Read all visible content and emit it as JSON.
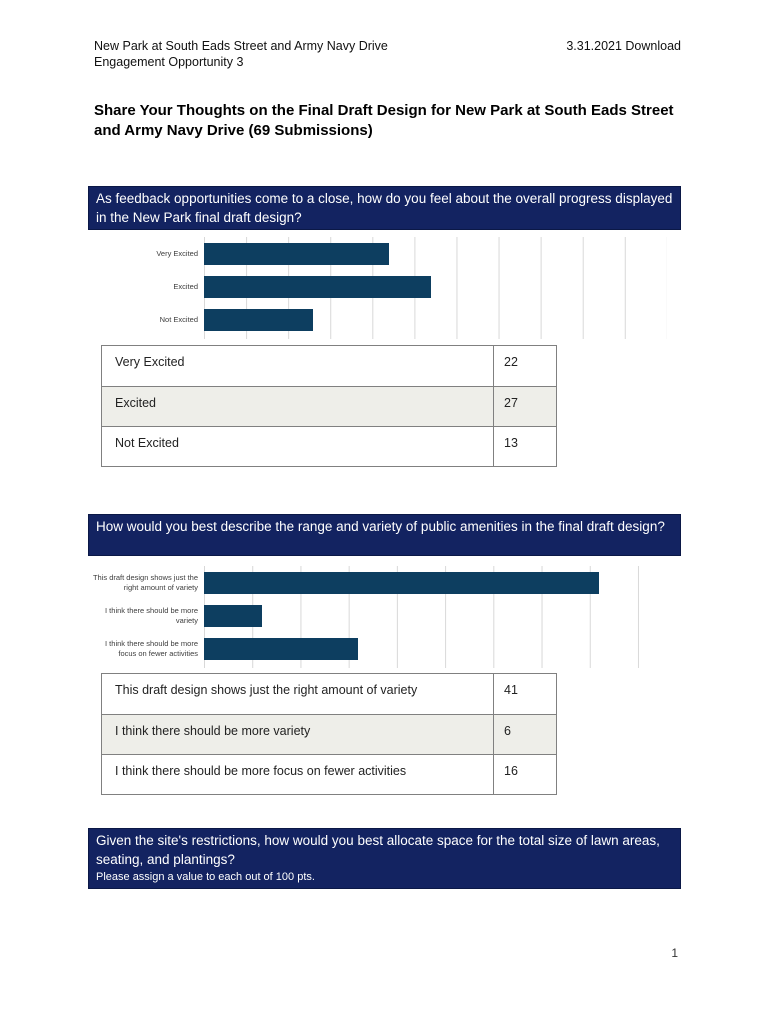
{
  "document": {
    "header": {
      "project_line1": "New Park at South Eads Street and Army Navy Drive",
      "project_line2": "Engagement Opportunity 3",
      "date": "3.31.2021",
      "download_label": "Download"
    },
    "title": "Share Your Thoughts on the Final Draft Design for New Park at South Eads Street and Army Navy Drive (69 Submissions)",
    "page_number": "1"
  },
  "questions": [
    {
      "banner": "As feedback opportunities come to a close, how do you feel about the overall progress displayed in the New Park final draft design?",
      "table": {
        "rows": [
          {
            "label": "Very Excited",
            "value": "22"
          },
          {
            "label": "Excited",
            "value": "27"
          },
          {
            "label": "Not Excited",
            "value": "13"
          }
        ]
      }
    },
    {
      "banner": "How would you best describe the range and variety of public amenities in the final draft design?",
      "table": {
        "rows": [
          {
            "label": "This draft design shows just the right amount of variety",
            "value": "41"
          },
          {
            "label": "I think there should be more variety",
            "value": "6"
          },
          {
            "label": "I think there should be more focus on fewer activities",
            "value": "16"
          }
        ]
      }
    },
    {
      "banner": "Given the site's restrictions, how would you best allocate space for the total size of lawn areas, seating, and plantings?",
      "subtitle": "Please assign a value to each out of 100 pts."
    }
  ],
  "chart_data": [
    {
      "type": "bar",
      "orientation": "horizontal",
      "title": "",
      "categories": [
        "Very Excited",
        "Excited",
        "Not Excited"
      ],
      "values": [
        22,
        27,
        13
      ],
      "xlim": [
        0,
        55
      ],
      "gridline_interval": 5,
      "grid": "on",
      "legend": "none"
    },
    {
      "type": "bar",
      "orientation": "horizontal",
      "title": "",
      "categories": [
        "This draft design shows just the right amount of variety",
        "I think there should be more variety",
        "I think there should be more focus on fewer activities"
      ],
      "values": [
        41,
        6,
        16
      ],
      "xlim": [
        0,
        48
      ],
      "gridline_interval": 5,
      "grid": "on",
      "legend": "none"
    }
  ],
  "colors": {
    "banner_bg": "#132361",
    "bar_color": "#0d3e60",
    "table_alt_row_bg": "#eeeee9",
    "table_border": "#808080",
    "gridline": "#d8d8d8",
    "banner_text": "#ffffff"
  }
}
